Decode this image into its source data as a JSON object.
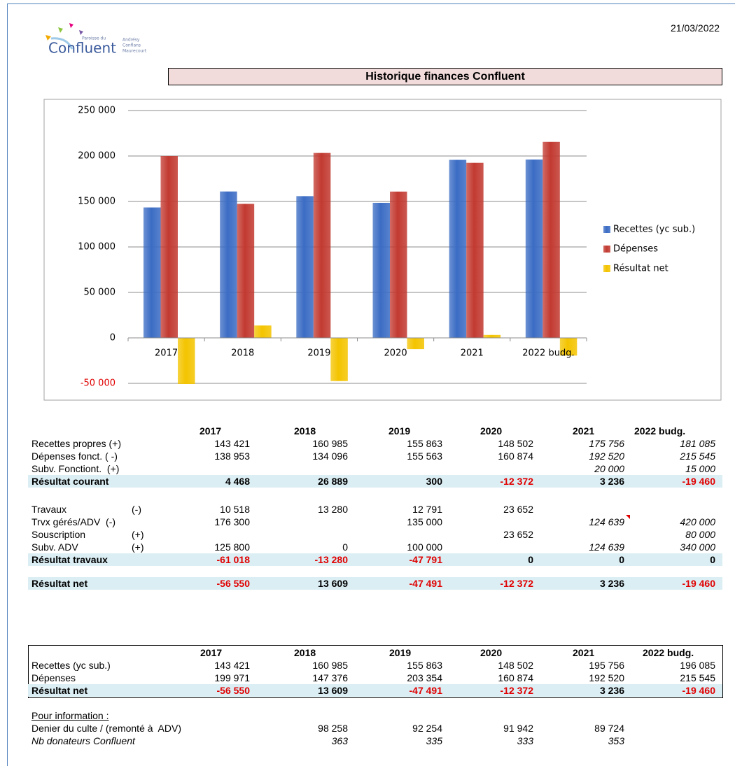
{
  "header": {
    "date": "21/03/2022",
    "title": "Historique finances Confluent",
    "logo": {
      "name": "Confluent",
      "prefix": "Paroisse du",
      "places": [
        "Andrésy",
        "Conflans",
        "Maurecourt"
      ]
    }
  },
  "chart_data": {
    "type": "bar",
    "categories": [
      "2017",
      "2018",
      "2019",
      "2020",
      "2021",
      "2022 budg."
    ],
    "series": [
      {
        "name": "Recettes (yc sub.)",
        "color": "#3b6cc4",
        "values": [
          143421,
          160985,
          155863,
          148502,
          195756,
          196085
        ]
      },
      {
        "name": "Dépenses",
        "color": "#c23a31",
        "values": [
          199971,
          147376,
          203354,
          160874,
          192520,
          215545
        ]
      },
      {
        "name": "Résultat net",
        "color": "#f4c400",
        "values": [
          -56550,
          13609,
          -47491,
          -12372,
          3236,
          -19460
        ]
      }
    ],
    "ylim": [
      -50000,
      250000
    ],
    "yticks": [
      {
        "value": -50000,
        "label": "-50 000"
      },
      0,
      {
        "value": 50000,
        "label": "50 000"
      },
      {
        "value": 100000,
        "label": "100 000"
      },
      {
        "value": 150000,
        "label": "150 000"
      },
      {
        "value": 200000,
        "label": "200 000"
      },
      {
        "value": 250000,
        "label": "250 000"
      }
    ],
    "grid": true,
    "legend": "right"
  },
  "table": {
    "columns": [
      "2017",
      "2018",
      "2019",
      "2020",
      "2021",
      "2022 budg."
    ],
    "rows": [
      {
        "label": "Recettes propres (+)",
        "cells": [
          "143 421",
          "160 985",
          "155 863",
          "148 502",
          "175 756",
          "181 085"
        ]
      },
      {
        "label": "Dépenses fonct. ( -)",
        "cells": [
          "138 953",
          "134 096",
          "155 563",
          "160 874",
          "192 520",
          "215 545"
        ]
      },
      {
        "label": "Subv. Fonctiont.  (+)",
        "cells": [
          null,
          null,
          null,
          null,
          "20 000",
          "15 000"
        ]
      },
      {
        "label": "Résultat courant",
        "highlight": true,
        "cells": [
          "4 468",
          "26 889",
          "300",
          "-12 372",
          "3 236",
          "-19 460"
        ]
      },
      {
        "label": "Travaux",
        "sign": "(-)",
        "cells": [
          "10 518",
          "13 280",
          "12 791",
          "23 652",
          null,
          null
        ]
      },
      {
        "label": "Trvx gérés/ADV  (-)",
        "cells": [
          "176 300",
          null,
          "135 000",
          null,
          "124 639",
          "420 000"
        ]
      },
      {
        "label": "Souscription",
        "sign": "(+)",
        "cells": [
          null,
          null,
          null,
          "23 652",
          null,
          "80 000"
        ]
      },
      {
        "label": "Subv. ADV",
        "sign": "(+)",
        "cells": [
          "125 800",
          "0",
          "100 000",
          null,
          "124 639",
          "340 000"
        ]
      },
      {
        "label": "Résultat travaux",
        "highlight": true,
        "cells": [
          "-61 018",
          "-13 280",
          "-47 791",
          "0",
          "0",
          "0"
        ]
      },
      {
        "label": "Résultat net",
        "highlight": true,
        "cells": [
          "-56 550",
          "13 609",
          "-47 491",
          "-12 372",
          "3 236",
          "-19 460"
        ]
      }
    ]
  },
  "summary": {
    "columns": [
      "2017",
      "2018",
      "2019",
      "2020",
      "2021",
      "2022 budg."
    ],
    "rows": [
      {
        "label": "Recettes (yc sub.)",
        "cells": [
          "143 421",
          "160 985",
          "155 863",
          "148 502",
          "195 756",
          "196 085"
        ]
      },
      {
        "label": "Dépenses",
        "cells": [
          "199 971",
          "147 376",
          "203 354",
          "160 874",
          "192 520",
          "215 545"
        ]
      },
      {
        "label": "Résultat net",
        "highlight": true,
        "cells": [
          "-56 550",
          "13 609",
          "-47 491",
          "-12 372",
          "3 236",
          "-19 460"
        ]
      }
    ]
  },
  "info": {
    "heading": "Pour information :",
    "rows": [
      {
        "label": "Denier du culte / (remonté à  ADV)",
        "cells": [
          null,
          "98 258",
          "92 254",
          "91 942",
          "89 724",
          null
        ]
      },
      {
        "label": "Nb donateurs Confluent",
        "italic": true,
        "cells": [
          null,
          "363",
          "335",
          "333",
          "353",
          null
        ]
      }
    ]
  }
}
